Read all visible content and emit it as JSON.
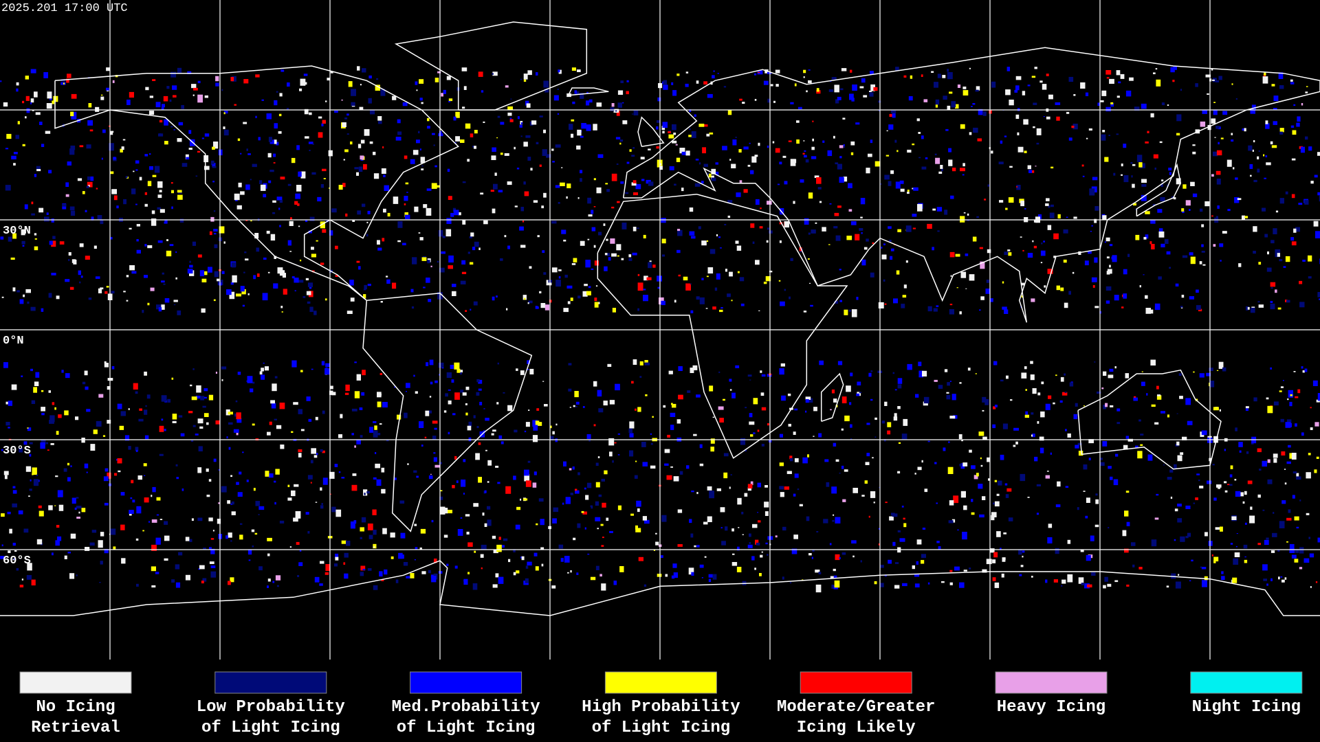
{
  "header": {
    "timestamp": "2025.201 17:00 UTC"
  },
  "latitude_labels": [
    "30°N",
    "0°N",
    "30°S",
    "60°S"
  ],
  "legend": [
    {
      "lines": [
        "No Icing",
        "Retrieval"
      ],
      "color": "#f2f2f2"
    },
    {
      "lines": [
        "Low Probability",
        "of Light Icing"
      ],
      "color": "#000a78"
    },
    {
      "lines": [
        "Med.Probability",
        "of Light Icing"
      ],
      "color": "#0000ff"
    },
    {
      "lines": [
        "High Probability",
        "of Light Icing"
      ],
      "color": "#ffff00"
    },
    {
      "lines": [
        "Moderate/Greater",
        "Icing Likely"
      ],
      "color": "#ff0000"
    },
    {
      "lines": [
        "Heavy Icing"
      ],
      "color": "#e8a0e8"
    },
    {
      "lines": [
        "Night Icing"
      ],
      "color": "#00f0f0"
    }
  ]
}
